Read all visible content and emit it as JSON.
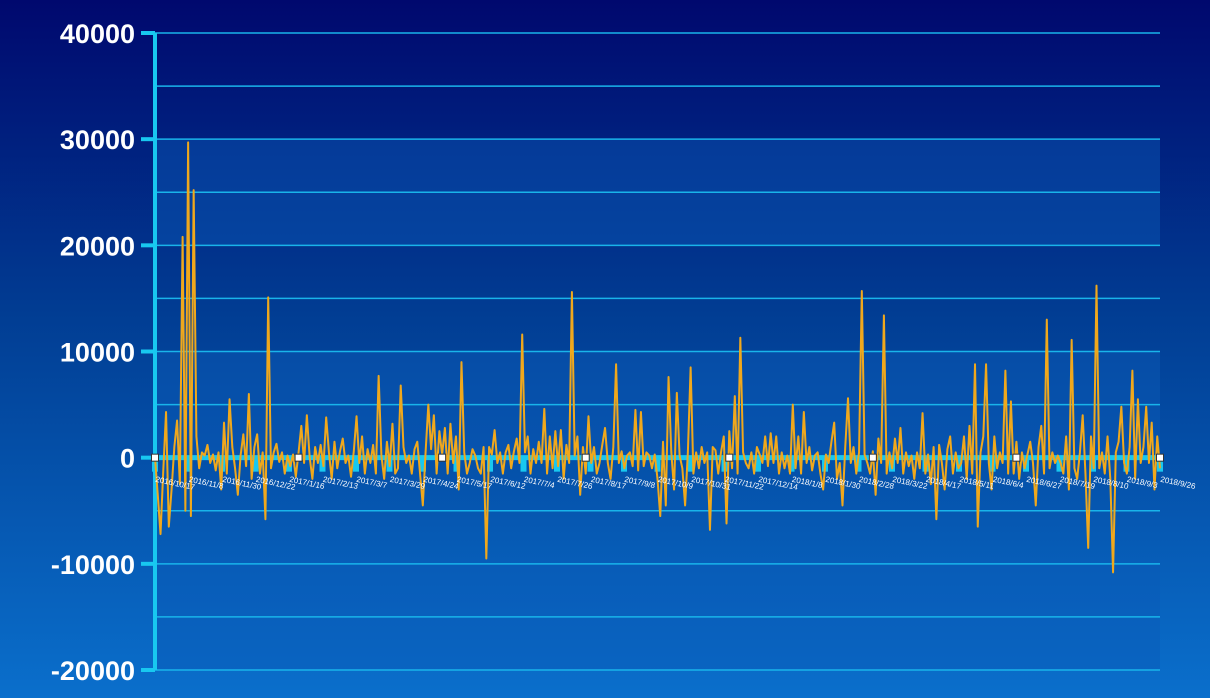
{
  "chart_data": {
    "type": "line",
    "title": "",
    "xlabel": "",
    "ylabel": "",
    "ylim": [
      -20000,
      40000
    ],
    "yticks": [
      "40000",
      "30000",
      "20000",
      "10000",
      "0",
      "-10000",
      "-20000"
    ],
    "xticks": [
      "2016/10/17",
      "2016/11/8",
      "2016/11/30",
      "2016/12/22",
      "2017/1/16",
      "2017/2/13",
      "2017/3/7",
      "2017/3/29",
      "2017/4/24",
      "2017/5/17",
      "2017/6/12",
      "2017/7/4",
      "2017/7/26",
      "2017/8/17",
      "2017/9/8",
      "2017/10/9",
      "2017/10/31",
      "2017/11/22",
      "2017/12/14",
      "2018/1/8",
      "2018/1/30",
      "2018/2/28",
      "2018/3/22",
      "2018/4/17",
      "2018/5/11",
      "2018/6/4",
      "2018/6/27",
      "2018/7/19",
      "2018/8/10",
      "2018/9/3",
      "2018/9/26"
    ],
    "grid": true,
    "colors": {
      "line": "#f0a81c",
      "axis": "#18c8f0",
      "grid": "#19b4ea",
      "band": "#0c5ab8"
    },
    "series": [
      {
        "values": [
          0,
          -3500,
          -7200,
          -1200,
          4300,
          -6500,
          -3000,
          1000,
          3500,
          -2500,
          20800,
          -5000,
          29700,
          -5500,
          25200,
          2000,
          -1000,
          500,
          200,
          1200,
          -500,
          300,
          -1200,
          500,
          -3000,
          3300,
          -1500,
          5500,
          1000,
          -1000,
          -3500,
          200,
          2200,
          -800,
          6000,
          -2000,
          1000,
          2200,
          -1500,
          500,
          -5800,
          15100,
          -1000,
          500,
          1300,
          -400,
          500,
          -1500,
          200,
          -800,
          300,
          -1800,
          500,
          3000,
          -500,
          4000,
          100,
          -2000,
          1000,
          -500,
          1200,
          -800,
          3800,
          500,
          -2000,
          1500,
          -1000,
          600,
          1800,
          -500,
          200,
          -1800,
          600,
          3900,
          -500,
          2000,
          -1500,
          800,
          -500,
          1200,
          -1500,
          7700,
          200,
          -2000,
          1500,
          -800,
          3200,
          -1500,
          -1000,
          6800,
          1000,
          -500,
          200,
          -1500,
          800,
          1500,
          -1500,
          -4500,
          500,
          5000,
          800,
          4000,
          -1500,
          2500,
          300,
          2800,
          -1500,
          3200,
          -500,
          2000,
          -3000,
          9000,
          500,
          -1500,
          -500,
          800,
          200,
          -1000,
          -1500,
          1000,
          -9500,
          1000,
          300,
          2600,
          -500,
          500,
          -1500,
          500,
          1200,
          -1000,
          600,
          1800,
          -500,
          11600,
          500,
          2000,
          -1500,
          800,
          -500,
          1500,
          -500,
          4600,
          -1500,
          2000,
          -1000,
          2500,
          -800,
          2600,
          -2000,
          1200,
          -500,
          15600,
          200,
          2000,
          -3500,
          1000,
          -1500,
          3900,
          -500,
          1000,
          -1500,
          -500,
          1200,
          2800,
          -500,
          -2000,
          1000,
          8800,
          -500,
          600,
          -1000,
          200,
          500,
          -800,
          4500,
          -1200,
          4300,
          -800,
          500,
          200,
          -1000,
          300,
          -2000,
          -5500,
          1500,
          -4500,
          7600,
          500,
          -3000,
          6100,
          200,
          -1000,
          -4500,
          500,
          8500,
          -1500,
          500,
          -1000,
          1000,
          -500,
          500,
          -6800,
          1000,
          700,
          -1500,
          500,
          2000,
          -6200,
          2500,
          -1000,
          5800,
          -1500,
          11300,
          500,
          -500,
          -1000,
          500,
          -1500,
          1000,
          300,
          -500,
          2000,
          -800,
          2300,
          -500,
          2000,
          -1500,
          500,
          -1000,
          200,
          -1500,
          5000,
          -1000,
          2000,
          -1500,
          4300,
          -500,
          1000,
          -1200,
          200,
          500,
          -1500,
          -3000,
          300,
          -500,
          1500,
          3300,
          -2000,
          -500,
          -4500,
          1000,
          5600,
          -500,
          1000,
          -1500,
          500,
          15700,
          300,
          -500,
          -1500,
          600,
          -3500,
          1800,
          -500,
          13400,
          -1500,
          500,
          -1000,
          1800,
          -500,
          2800,
          -1500,
          500,
          -800,
          200,
          -2000,
          500,
          -1000,
          4200,
          -1500,
          300,
          -2500,
          1000,
          -5800,
          1200,
          -500,
          -3000,
          800,
          2000,
          -1500,
          500,
          -1000,
          -500,
          2000,
          -2000,
          3000,
          -1500,
          8800,
          -6500,
          500,
          2000,
          8800,
          -500,
          -3000,
          2000,
          -1000,
          500,
          -500,
          8200,
          -1500,
          5300,
          -1500,
          1500,
          -2000,
          500,
          -1000,
          300,
          1500,
          -500,
          -4500,
          1000,
          3000,
          -1500,
          13000,
          -1000,
          500,
          -500,
          200,
          -500,
          -1500,
          2000,
          -3000,
          11100,
          -1000,
          -2000,
          500,
          4000,
          -1500,
          -8500,
          2000,
          -1000,
          16200,
          -1000,
          500,
          -1500,
          2000,
          -2000,
          -10800,
          500,
          1500,
          4800,
          -500,
          -1500,
          1000,
          8200,
          -2000,
          5500,
          -500,
          1000,
          4800,
          -500,
          3300,
          -3000,
          2000,
          -1000
        ]
      }
    ]
  }
}
